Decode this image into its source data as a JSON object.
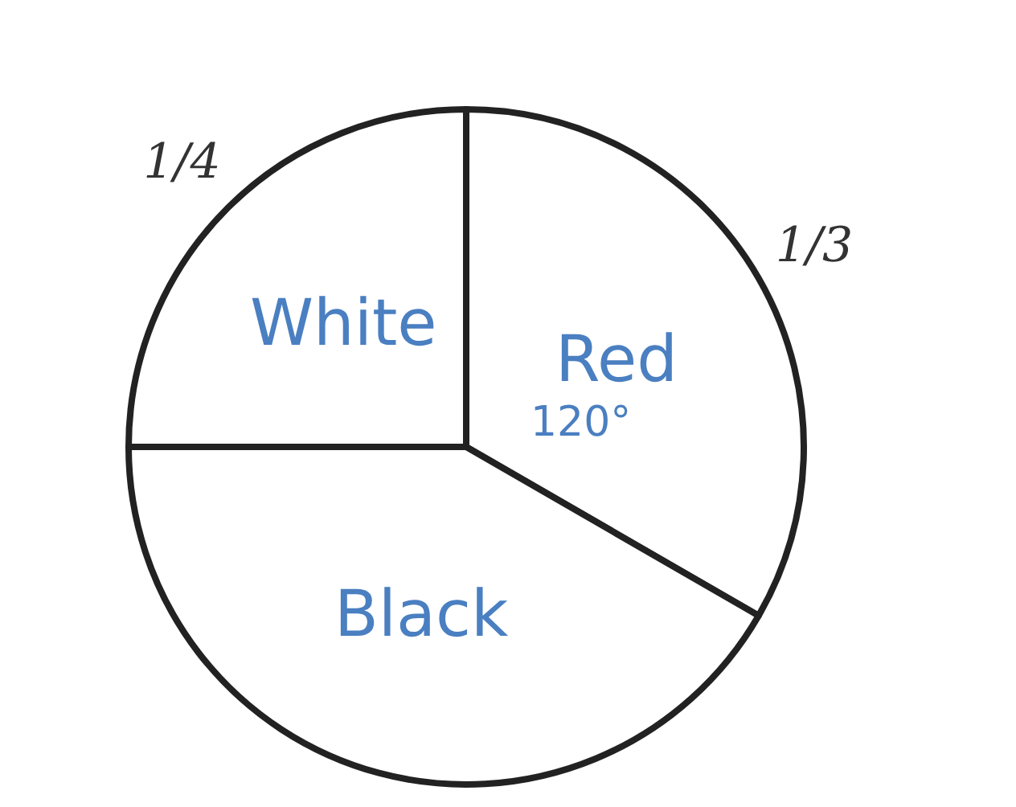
{
  "chart_data": {
    "type": "pie",
    "categories": [
      "Red",
      "Black",
      "White"
    ],
    "values": [
      0.3333,
      0.4167,
      0.25
    ],
    "colors": [
      "#ffffff",
      "#ffffff",
      "#ffffff"
    ],
    "value_labels": [
      "1/3",
      null,
      "1/4"
    ],
    "annotations": [
      "120°"
    ]
  }
}
